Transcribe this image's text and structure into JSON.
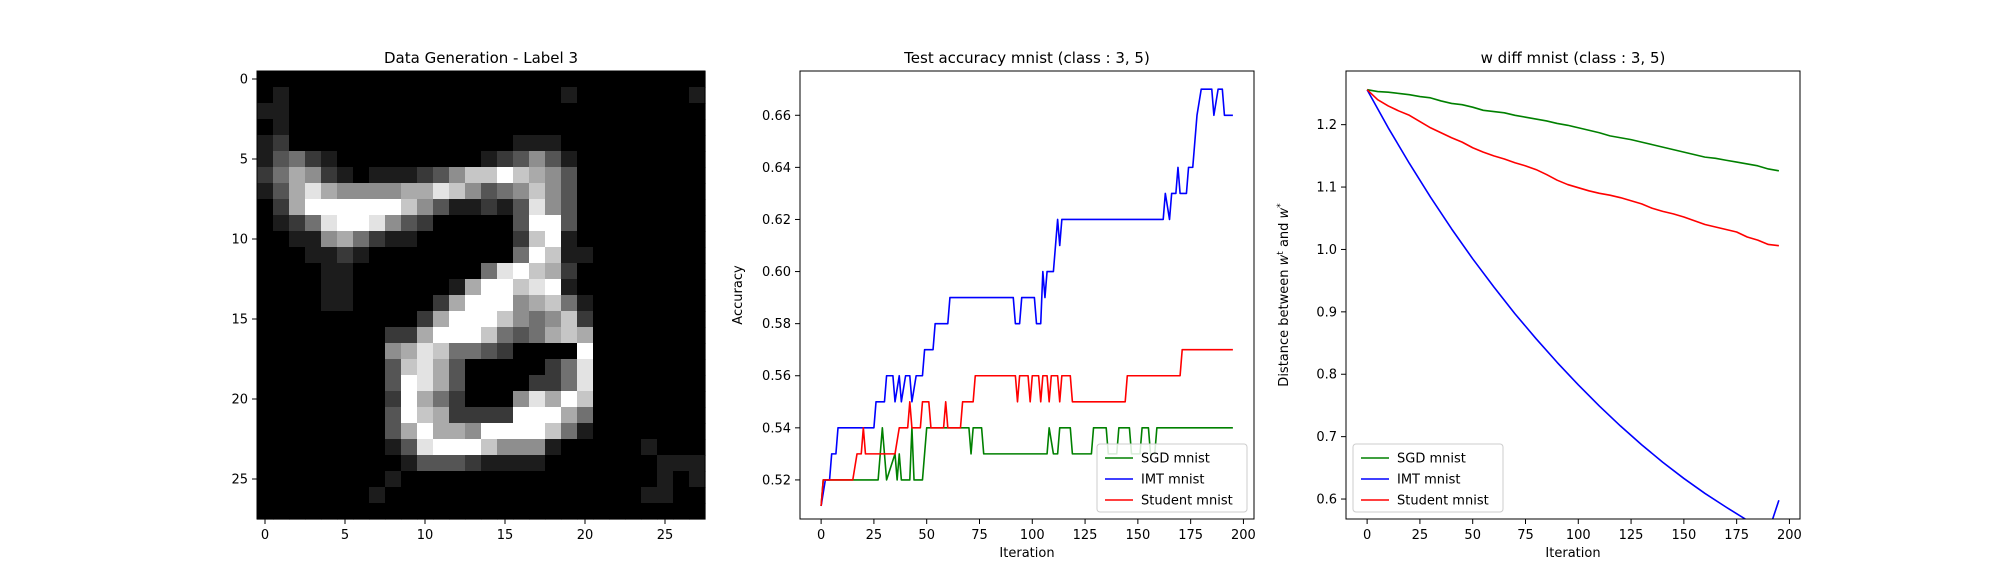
{
  "chart_data": [
    {
      "type": "heatmap",
      "title": "Data Generation - Label 3",
      "xlim": [
        -0.5,
        27.5
      ],
      "ylim": [
        27.5,
        -0.5
      ],
      "xticks": [
        0,
        5,
        10,
        15,
        20,
        25
      ],
      "yticks": [
        0,
        5,
        10,
        15,
        20,
        25
      ],
      "colormap": "gray",
      "rows": [
        "00000000000000000000000000000",
        "01000000000000000001000000010",
        "11000000000000000000000000000",
        "01000000000000000000000000000",
        "12000000000000001110000000000",
        "13421000000000123531000000000",
        "24652101112357797653000000000",
        "13686555566875345753000000000",
        "02699999975311213853000000000",
        "01248998532000003993000000000",
        "00115642110000002791000000000",
        "00011210000000004971100000000",
        "00001100000000489762000000000",
        "00001100000016997891000000000",
        "00001100000269995674100000000",
        "00000000002699975457200000000",
        "00000000226999743467600000000",
        "00000000568744320000900000000",
        "00000000378630000024800000000",
        "00000000398630000224800000000",
        "00000000296420005869700000000",
        "00000000397622229996400000000",
        "00000000369665999974100000000",
        "00000000138999755510000010000",
        "00000000013332111100000001110",
        "00000000100000000000000001010",
        "00000001000000000000000011000",
        "00000000000000000000000000000"
      ]
    },
    {
      "type": "line",
      "title": "Test accuracy mnist (class : 3, 5)",
      "xlabel": "Iteration",
      "ylabel": "Accuracy",
      "xlim": [
        -10,
        205
      ],
      "ylim": [
        0.505,
        0.677
      ],
      "xticks": [
        0,
        25,
        50,
        75,
        100,
        125,
        150,
        175,
        200
      ],
      "yticks": [
        0.52,
        0.54,
        0.56,
        0.58,
        0.6,
        0.62,
        0.64,
        0.66
      ],
      "legend": "lower-right",
      "series": [
        {
          "name": "SGD mnist",
          "color": "#008000",
          "points": [
            [
              0,
              0.51
            ],
            [
              1,
              0.52
            ],
            [
              27,
              0.52
            ],
            [
              29,
              0.54
            ],
            [
              31,
              0.52
            ],
            [
              35,
              0.53
            ],
            [
              36,
              0.52
            ],
            [
              37,
              0.53
            ],
            [
              38,
              0.52
            ],
            [
              42,
              0.52
            ],
            [
              43,
              0.54
            ],
            [
              44,
              0.52
            ],
            [
              48,
              0.52
            ],
            [
              50,
              0.54
            ],
            [
              70,
              0.54
            ],
            [
              71,
              0.53
            ],
            [
              72,
              0.54
            ],
            [
              76,
              0.54
            ],
            [
              77,
              0.53
            ],
            [
              107,
              0.53
            ],
            [
              108,
              0.54
            ],
            [
              110,
              0.53
            ],
            [
              112,
              0.53
            ],
            [
              113,
              0.54
            ],
            [
              118,
              0.54
            ],
            [
              119,
              0.53
            ],
            [
              128,
              0.53
            ],
            [
              129,
              0.54
            ],
            [
              135,
              0.54
            ],
            [
              136,
              0.53
            ],
            [
              140,
              0.53
            ],
            [
              141,
              0.54
            ],
            [
              146,
              0.54
            ],
            [
              147,
              0.53
            ],
            [
              151,
              0.53
            ],
            [
              152,
              0.54
            ],
            [
              155,
              0.54
            ],
            [
              156,
              0.53
            ],
            [
              158,
              0.53
            ],
            [
              159,
              0.54
            ],
            [
              195,
              0.54
            ]
          ]
        },
        {
          "name": "IMT mnist",
          "color": "#0000ff",
          "points": [
            [
              0,
              0.51
            ],
            [
              2,
              0.52
            ],
            [
              4,
              0.52
            ],
            [
              5,
              0.53
            ],
            [
              7,
              0.53
            ],
            [
              8,
              0.54
            ],
            [
              25,
              0.54
            ],
            [
              26,
              0.55
            ],
            [
              30,
              0.55
            ],
            [
              31,
              0.56
            ],
            [
              34,
              0.56
            ],
            [
              35,
              0.55
            ],
            [
              37,
              0.56
            ],
            [
              38,
              0.55
            ],
            [
              40,
              0.56
            ],
            [
              42,
              0.56
            ],
            [
              43,
              0.55
            ],
            [
              45,
              0.56
            ],
            [
              48,
              0.56
            ],
            [
              49,
              0.57
            ],
            [
              53,
              0.57
            ],
            [
              54,
              0.58
            ],
            [
              60,
              0.58
            ],
            [
              61,
              0.59
            ],
            [
              91,
              0.59
            ],
            [
              92,
              0.58
            ],
            [
              94,
              0.58
            ],
            [
              95,
              0.59
            ],
            [
              101,
              0.59
            ],
            [
              102,
              0.58
            ],
            [
              104,
              0.58
            ],
            [
              105,
              0.6
            ],
            [
              106,
              0.59
            ],
            [
              107,
              0.6
            ],
            [
              110,
              0.6
            ],
            [
              111,
              0.61
            ],
            [
              112,
              0.62
            ],
            [
              113,
              0.61
            ],
            [
              114,
              0.62
            ],
            [
              162,
              0.62
            ],
            [
              163,
              0.63
            ],
            [
              165,
              0.62
            ],
            [
              166,
              0.63
            ],
            [
              168,
              0.63
            ],
            [
              169,
              0.64
            ],
            [
              170,
              0.63
            ],
            [
              173,
              0.63
            ],
            [
              174,
              0.64
            ],
            [
              176,
              0.64
            ],
            [
              177,
              0.65
            ],
            [
              178,
              0.66
            ],
            [
              180,
              0.67
            ],
            [
              185,
              0.67
            ],
            [
              186,
              0.66
            ],
            [
              188,
              0.67
            ],
            [
              190,
              0.67
            ],
            [
              191,
              0.66
            ],
            [
              195,
              0.66
            ]
          ]
        },
        {
          "name": "Student mnist",
          "color": "#ff0000",
          "points": [
            [
              0,
              0.51
            ],
            [
              1,
              0.52
            ],
            [
              15,
              0.52
            ],
            [
              17,
              0.53
            ],
            [
              19,
              0.53
            ],
            [
              20,
              0.54
            ],
            [
              21,
              0.53
            ],
            [
              35,
              0.53
            ],
            [
              37,
              0.54
            ],
            [
              41,
              0.54
            ],
            [
              42,
              0.55
            ],
            [
              43,
              0.54
            ],
            [
              47,
              0.54
            ],
            [
              48,
              0.55
            ],
            [
              51,
              0.55
            ],
            [
              52,
              0.54
            ],
            [
              58,
              0.54
            ],
            [
              59,
              0.55
            ],
            [
              60,
              0.54
            ],
            [
              66,
              0.54
            ],
            [
              67,
              0.55
            ],
            [
              72,
              0.55
            ],
            [
              73,
              0.56
            ],
            [
              92,
              0.56
            ],
            [
              93,
              0.55
            ],
            [
              94,
              0.56
            ],
            [
              98,
              0.56
            ],
            [
              99,
              0.55
            ],
            [
              100,
              0.56
            ],
            [
              103,
              0.56
            ],
            [
              104,
              0.55
            ],
            [
              105,
              0.56
            ],
            [
              107,
              0.56
            ],
            [
              108,
              0.55
            ],
            [
              109,
              0.56
            ],
            [
              112,
              0.56
            ],
            [
              113,
              0.55
            ],
            [
              114,
              0.56
            ],
            [
              118,
              0.56
            ],
            [
              119,
              0.55
            ],
            [
              144,
              0.55
            ],
            [
              145,
              0.56
            ],
            [
              170,
              0.56
            ],
            [
              171,
              0.57
            ],
            [
              195,
              0.57
            ]
          ]
        }
      ]
    },
    {
      "type": "line",
      "title": "w diff mnist (class : 3, 5)",
      "xlabel": "Iteration",
      "ylabel_parts": [
        "Distance between ",
        "w",
        "t",
        " and ",
        "w",
        "*"
      ],
      "xlim": [
        -10,
        205
      ],
      "ylim": [
        0.568,
        1.286
      ],
      "xticks": [
        0,
        25,
        50,
        75,
        100,
        125,
        150,
        175,
        200
      ],
      "yticks": [
        0.6,
        0.7,
        0.8,
        0.9,
        1.0,
        1.1,
        1.2
      ],
      "legend": "lower-left",
      "series": [
        {
          "name": "SGD mnist",
          "color": "#008000",
          "points": [
            [
              0,
              1.256
            ],
            [
              5,
              1.253
            ],
            [
              10,
              1.252
            ],
            [
              15,
              1.25
            ],
            [
              20,
              1.248
            ],
            [
              25,
              1.245
            ],
            [
              30,
              1.243
            ],
            [
              35,
              1.238
            ],
            [
              40,
              1.234
            ],
            [
              45,
              1.232
            ],
            [
              50,
              1.228
            ],
            [
              55,
              1.223
            ],
            [
              60,
              1.221
            ],
            [
              65,
              1.219
            ],
            [
              70,
              1.215
            ],
            [
              75,
              1.212
            ],
            [
              80,
              1.209
            ],
            [
              85,
              1.206
            ],
            [
              90,
              1.202
            ],
            [
              95,
              1.199
            ],
            [
              100,
              1.195
            ],
            [
              105,
              1.191
            ],
            [
              110,
              1.187
            ],
            [
              115,
              1.182
            ],
            [
              120,
              1.179
            ],
            [
              125,
              1.176
            ],
            [
              130,
              1.172
            ],
            [
              135,
              1.168
            ],
            [
              140,
              1.164
            ],
            [
              145,
              1.16
            ],
            [
              150,
              1.156
            ],
            [
              155,
              1.152
            ],
            [
              160,
              1.148
            ],
            [
              165,
              1.146
            ],
            [
              170,
              1.143
            ],
            [
              175,
              1.14
            ],
            [
              180,
              1.137
            ],
            [
              185,
              1.134
            ],
            [
              190,
              1.129
            ],
            [
              195,
              1.126
            ]
          ]
        },
        {
          "name": "IMT mnist",
          "color": "#0000ff",
          "points": [
            [
              0,
              1.256
            ],
            [
              10,
              1.195
            ],
            [
              20,
              1.138
            ],
            [
              30,
              1.084
            ],
            [
              40,
              1.033
            ],
            [
              50,
              0.985
            ],
            [
              60,
              0.94
            ],
            [
              70,
              0.897
            ],
            [
              80,
              0.857
            ],
            [
              90,
              0.819
            ],
            [
              100,
              0.783
            ],
            [
              110,
              0.749
            ],
            [
              120,
              0.717
            ],
            [
              130,
              0.687
            ],
            [
              140,
              0.659
            ],
            [
              150,
              0.633
            ],
            [
              160,
              0.609
            ],
            [
              170,
              0.587
            ],
            [
              180,
              0.566
            ],
            [
              190,
              0.547
            ],
            [
              195,
              0.598
            ]
          ]
        },
        {
          "name": "Student mnist",
          "color": "#ff0000",
          "points": [
            [
              0,
              1.256
            ],
            [
              5,
              1.24
            ],
            [
              10,
              1.23
            ],
            [
              15,
              1.222
            ],
            [
              20,
              1.215
            ],
            [
              25,
              1.205
            ],
            [
              30,
              1.195
            ],
            [
              35,
              1.187
            ],
            [
              40,
              1.179
            ],
            [
              45,
              1.172
            ],
            [
              50,
              1.163
            ],
            [
              55,
              1.156
            ],
            [
              60,
              1.15
            ],
            [
              65,
              1.145
            ],
            [
              70,
              1.139
            ],
            [
              75,
              1.134
            ],
            [
              80,
              1.128
            ],
            [
              85,
              1.12
            ],
            [
              90,
              1.111
            ],
            [
              95,
              1.104
            ],
            [
              100,
              1.099
            ],
            [
              105,
              1.094
            ],
            [
              110,
              1.09
            ],
            [
              115,
              1.087
            ],
            [
              120,
              1.083
            ],
            [
              125,
              1.078
            ],
            [
              130,
              1.073
            ],
            [
              135,
              1.066
            ],
            [
              140,
              1.061
            ],
            [
              145,
              1.057
            ],
            [
              150,
              1.052
            ],
            [
              155,
              1.046
            ],
            [
              160,
              1.04
            ],
            [
              165,
              1.036
            ],
            [
              170,
              1.032
            ],
            [
              175,
              1.028
            ],
            [
              180,
              1.02
            ],
            [
              185,
              1.015
            ],
            [
              190,
              1.008
            ],
            [
              195,
              1.006
            ]
          ]
        }
      ]
    }
  ]
}
